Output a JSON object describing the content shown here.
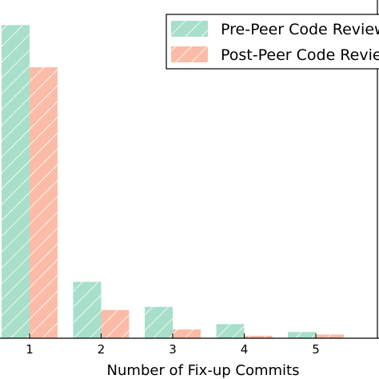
{
  "chart_data": {
    "type": "bar",
    "categories": [
      "1",
      "2",
      "3",
      "4",
      "5"
    ],
    "series": [
      {
        "name": "Pre-Peer Code Review",
        "color": "#a8dfca",
        "values": [
          100,
          18,
          10,
          4.5,
          2
        ]
      },
      {
        "name": "Post-Peer Code Review",
        "color": "#fbbca7",
        "values": [
          86.5,
          9,
          2.8,
          0.8,
          1.2
        ]
      }
    ],
    "title": "",
    "xlabel": "Number of Fix-up Commits",
    "ylabel": "",
    "ylim": [
      0,
      108
    ],
    "grid": false,
    "legend": "top-right"
  }
}
